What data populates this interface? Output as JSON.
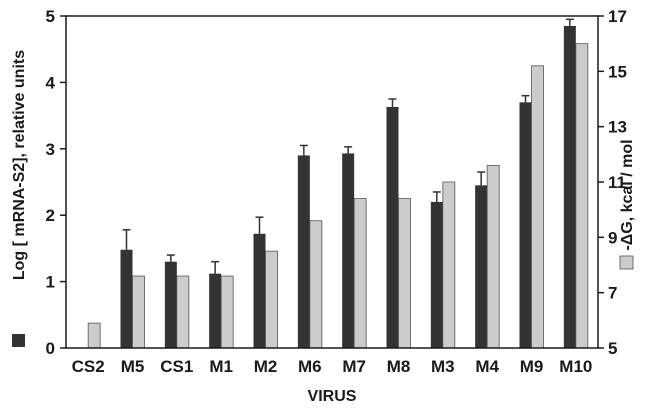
{
  "chart_data": {
    "type": "bar",
    "title": "",
    "xlabel": "VIRUS",
    "ylabel": "Log [ mRNA-S2], relative units",
    "y2label": "-ΔG, kcal / mol",
    "categories": [
      "CS2",
      "M5",
      "CS1",
      "M1",
      "M2",
      "M6",
      "M7",
      "M8",
      "M3",
      "M4",
      "M9",
      "M10"
    ],
    "ylim": [
      0,
      5
    ],
    "yticks": [
      "0",
      "1",
      "2",
      "3",
      "4",
      "5"
    ],
    "y2lim": [
      5,
      17
    ],
    "y2ticks": [
      "5",
      "7",
      "9",
      "11",
      "13",
      "15",
      "17"
    ],
    "grid": false,
    "legend_position": "left and right axis titles (swatches)",
    "series": [
      {
        "axis": "left",
        "color": "#333333",
        "values": [
          null,
          1.48,
          1.3,
          1.12,
          1.72,
          2.9,
          2.93,
          3.63,
          2.2,
          2.45,
          3.7,
          4.85
        ],
        "errors": [
          null,
          0.3,
          0.1,
          0.18,
          0.25,
          0.15,
          0.1,
          0.12,
          0.15,
          0.2,
          0.1,
          0.1
        ]
      },
      {
        "axis": "right",
        "color": "#cccccc",
        "values": [
          5.9,
          7.6,
          7.6,
          7.6,
          8.5,
          9.6,
          10.4,
          10.4,
          11.0,
          11.6,
          15.2,
          16.0
        ]
      }
    ]
  }
}
